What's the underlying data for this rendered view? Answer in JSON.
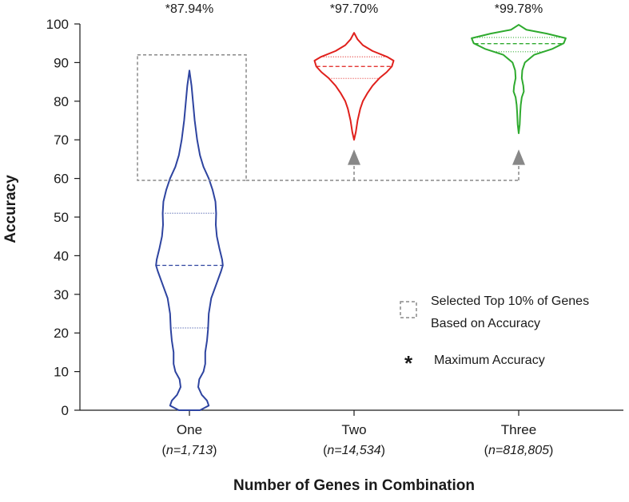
{
  "chart_data": {
    "type": "violin",
    "ylabel": "Accuracy",
    "xlabel": "Number of Genes in Combination",
    "ylim": [
      0,
      100
    ],
    "yticks": [
      0,
      10,
      20,
      30,
      40,
      50,
      60,
      70,
      80,
      90,
      100
    ],
    "yticks_text": [
      "0",
      "10",
      "20",
      "30",
      "40",
      "50",
      "60",
      "70",
      "80",
      "90",
      "100"
    ],
    "categories": [
      "One",
      "Two",
      "Three"
    ],
    "n_counts": [
      "1,713",
      "14,534",
      "818,805"
    ],
    "n_prefix": "n=",
    "max_labels": [
      "*87.94%",
      "*97.70%",
      "*99.78%"
    ],
    "series": [
      {
        "name": "One",
        "color": "#2e44a0",
        "max": 87.94,
        "min": 0,
        "median": 37.5,
        "q1": 21.3,
        "q3": 51,
        "density_profile": [
          [
            0,
            0.3
          ],
          [
            1.2,
            0.55
          ],
          [
            2.5,
            0.5
          ],
          [
            4,
            0.35
          ],
          [
            6,
            0.25
          ],
          [
            8,
            0.28
          ],
          [
            10,
            0.4
          ],
          [
            12,
            0.45
          ],
          [
            15,
            0.45
          ],
          [
            18,
            0.5
          ],
          [
            21,
            0.53
          ],
          [
            25,
            0.55
          ],
          [
            29,
            0.62
          ],
          [
            33,
            0.78
          ],
          [
            36,
            0.9
          ],
          [
            37.5,
            0.95
          ],
          [
            39,
            0.93
          ],
          [
            42,
            0.85
          ],
          [
            45,
            0.78
          ],
          [
            48,
            0.75
          ],
          [
            51,
            0.76
          ],
          [
            54,
            0.74
          ],
          [
            57,
            0.66
          ],
          [
            60,
            0.55
          ],
          [
            63,
            0.4
          ],
          [
            66,
            0.3
          ],
          [
            70,
            0.22
          ],
          [
            75,
            0.15
          ],
          [
            80,
            0.1
          ],
          [
            84,
            0.06
          ],
          [
            87.94,
            0.0
          ]
        ]
      },
      {
        "name": "Two",
        "color": "#e0201c",
        "max": 97.7,
        "min": 70,
        "median": 89,
        "q1": 85.9,
        "q3": 91.5,
        "density_profile": [
          [
            70,
            0.0
          ],
          [
            72,
            0.04
          ],
          [
            75,
            0.08
          ],
          [
            78,
            0.14
          ],
          [
            80,
            0.2
          ],
          [
            82,
            0.3
          ],
          [
            84,
            0.42
          ],
          [
            86,
            0.58
          ],
          [
            87.5,
            0.74
          ],
          [
            89,
            0.86
          ],
          [
            90.5,
            0.9
          ],
          [
            91.5,
            0.75
          ],
          [
            93,
            0.42
          ],
          [
            94.5,
            0.2
          ],
          [
            96,
            0.08
          ],
          [
            97.7,
            0.0
          ]
        ]
      },
      {
        "name": "Three",
        "color": "#2eaa2e",
        "max": 99.78,
        "min": 71.7,
        "median": 94.9,
        "q1": 92.8,
        "q3": 96.5,
        "density_profile": [
          [
            71.7,
            0.0
          ],
          [
            74,
            0.02
          ],
          [
            77,
            0.03
          ],
          [
            79,
            0.04
          ],
          [
            81,
            0.06
          ],
          [
            82.5,
            0.1
          ],
          [
            84,
            0.09
          ],
          [
            86,
            0.06
          ],
          [
            88,
            0.07
          ],
          [
            90,
            0.12
          ],
          [
            92,
            0.3
          ],
          [
            93.5,
            0.65
          ],
          [
            95,
            0.88
          ],
          [
            96.3,
            0.92
          ],
          [
            97.5,
            0.55
          ],
          [
            98.5,
            0.15
          ],
          [
            99.78,
            0.0
          ]
        ]
      }
    ],
    "selection_box": {
      "from": 59.5,
      "to": 92,
      "category": "One"
    },
    "arrow_targets": [
      "Two",
      "Three"
    ],
    "legend": {
      "position": "right",
      "box_line1": "Selected Top 10% of Genes",
      "box_line2": "Based on Accuracy",
      "star_symbol": "*",
      "star_text": "Maximum Accuracy"
    },
    "colors": {
      "box": "#8a8a8a",
      "arrow": "#888888",
      "axis": "#1a1a1a"
    }
  }
}
